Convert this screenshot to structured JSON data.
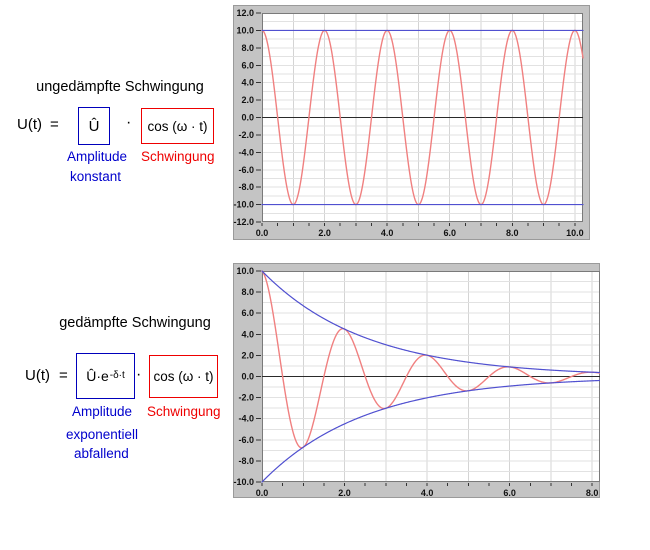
{
  "left_panel": {
    "undamped": {
      "title": "ungedämpfte Schwingung",
      "lhs": "U(t)",
      "equals": "=",
      "amplitude_box": "Û",
      "dot": "·",
      "oscillation_box": "cos (ω · t)",
      "amplitude_label": "Amplitude",
      "amplitude_sublabel": "konstant",
      "oscillation_label": "Schwingung"
    },
    "damped": {
      "title": "gedämpfte Schwingung",
      "lhs": "U(t)",
      "equals": "=",
      "amplitude_box_base": "Û·e",
      "amplitude_box_exponent": "-δ·t",
      "dot": "·",
      "oscillation_box": "cos (ω · t)",
      "amplitude_label": "Amplitude",
      "amplitude_sublabel_line1": "exponentiell",
      "amplitude_sublabel_line2": "abfallend",
      "oscillation_label": "Schwingung"
    }
  },
  "colors": {
    "label_blue": "#0000cc",
    "label_red": "#ee0000",
    "curve_red": "#f08080",
    "curve_blue": "#5050d0",
    "zero_line": "#2a2a2a",
    "frame_gray": "#c4c4c4",
    "frame_edge": "#9a9a9a",
    "plot_bg": "#ffffff",
    "grid_v": "#d4d4d4",
    "grid_h": "#e2e2e2",
    "plot_border": "#7a7a7a",
    "tick_text": "#111111"
  },
  "chart_data": [
    {
      "type": "line",
      "name": "undamped-oscillation-plot",
      "x_range": [
        0,
        10.26
      ],
      "y_range": [
        -12,
        12
      ],
      "grid_step": 1,
      "x_label_step": 2,
      "y_label_step": 2,
      "x_tick_labels": [
        "0.0",
        "2.0",
        "4.0",
        "6.0",
        "8.0",
        "10.0"
      ],
      "y_tick_labels": [
        "12.0",
        "10.0",
        "8.0",
        "6.0",
        "4.0",
        "2.0",
        "0.0",
        "-2.0",
        "-4.0",
        "-6.0",
        "-8.0",
        "-10.0",
        "-12.0"
      ],
      "series": [
        {
          "name": "zero-axis",
          "kind": "zero",
          "formula": "0",
          "color_key": "zero_line"
        },
        {
          "name": "oscillation-curve",
          "kind": "cosine",
          "formula": "10·cos(π·t)",
          "amplitude": 10,
          "period": 2,
          "damping": 0,
          "color_key": "curve_red"
        },
        {
          "name": "upper-amplitude-line",
          "kind": "envelope",
          "formula": "+10",
          "amplitude": 10,
          "damping": 0,
          "sign": 1,
          "color_key": "curve_blue"
        },
        {
          "name": "lower-amplitude-line",
          "kind": "envelope",
          "formula": "-10",
          "amplitude": 10,
          "damping": 0,
          "sign": -1,
          "color_key": "curve_blue"
        }
      ]
    },
    {
      "type": "line",
      "name": "damped-oscillation-plot",
      "x_range": [
        0,
        8.19
      ],
      "y_range": [
        -10,
        10
      ],
      "grid_step": 1,
      "x_label_step": 2,
      "y_label_step": 2,
      "x_tick_labels": [
        "0.0",
        "2.0",
        "4.0",
        "6.0",
        "8.0"
      ],
      "y_tick_labels": [
        "10.0",
        "8.0",
        "6.0",
        "4.0",
        "2.0",
        "0.0",
        "-2.0",
        "-4.0",
        "-6.0",
        "-8.0",
        "-10.0"
      ],
      "series": [
        {
          "name": "zero-axis",
          "kind": "zero",
          "formula": "0",
          "color_key": "zero_line"
        },
        {
          "name": "oscillation-curve",
          "kind": "cosine",
          "formula": "10·e^(-0.4·t)·cos(π·t)",
          "amplitude": 10,
          "period": 2,
          "damping": 0.4,
          "color_key": "curve_red"
        },
        {
          "name": "upper-envelope-curve",
          "kind": "envelope",
          "formula": "10·e^(-0.4·t)",
          "amplitude": 10,
          "damping": 0.4,
          "sign": 1,
          "color_key": "curve_blue"
        },
        {
          "name": "lower-envelope-curve",
          "kind": "envelope",
          "formula": "-10·e^(-0.4·t)",
          "amplitude": 10,
          "damping": 0.4,
          "sign": -1,
          "color_key": "curve_blue"
        }
      ]
    }
  ]
}
